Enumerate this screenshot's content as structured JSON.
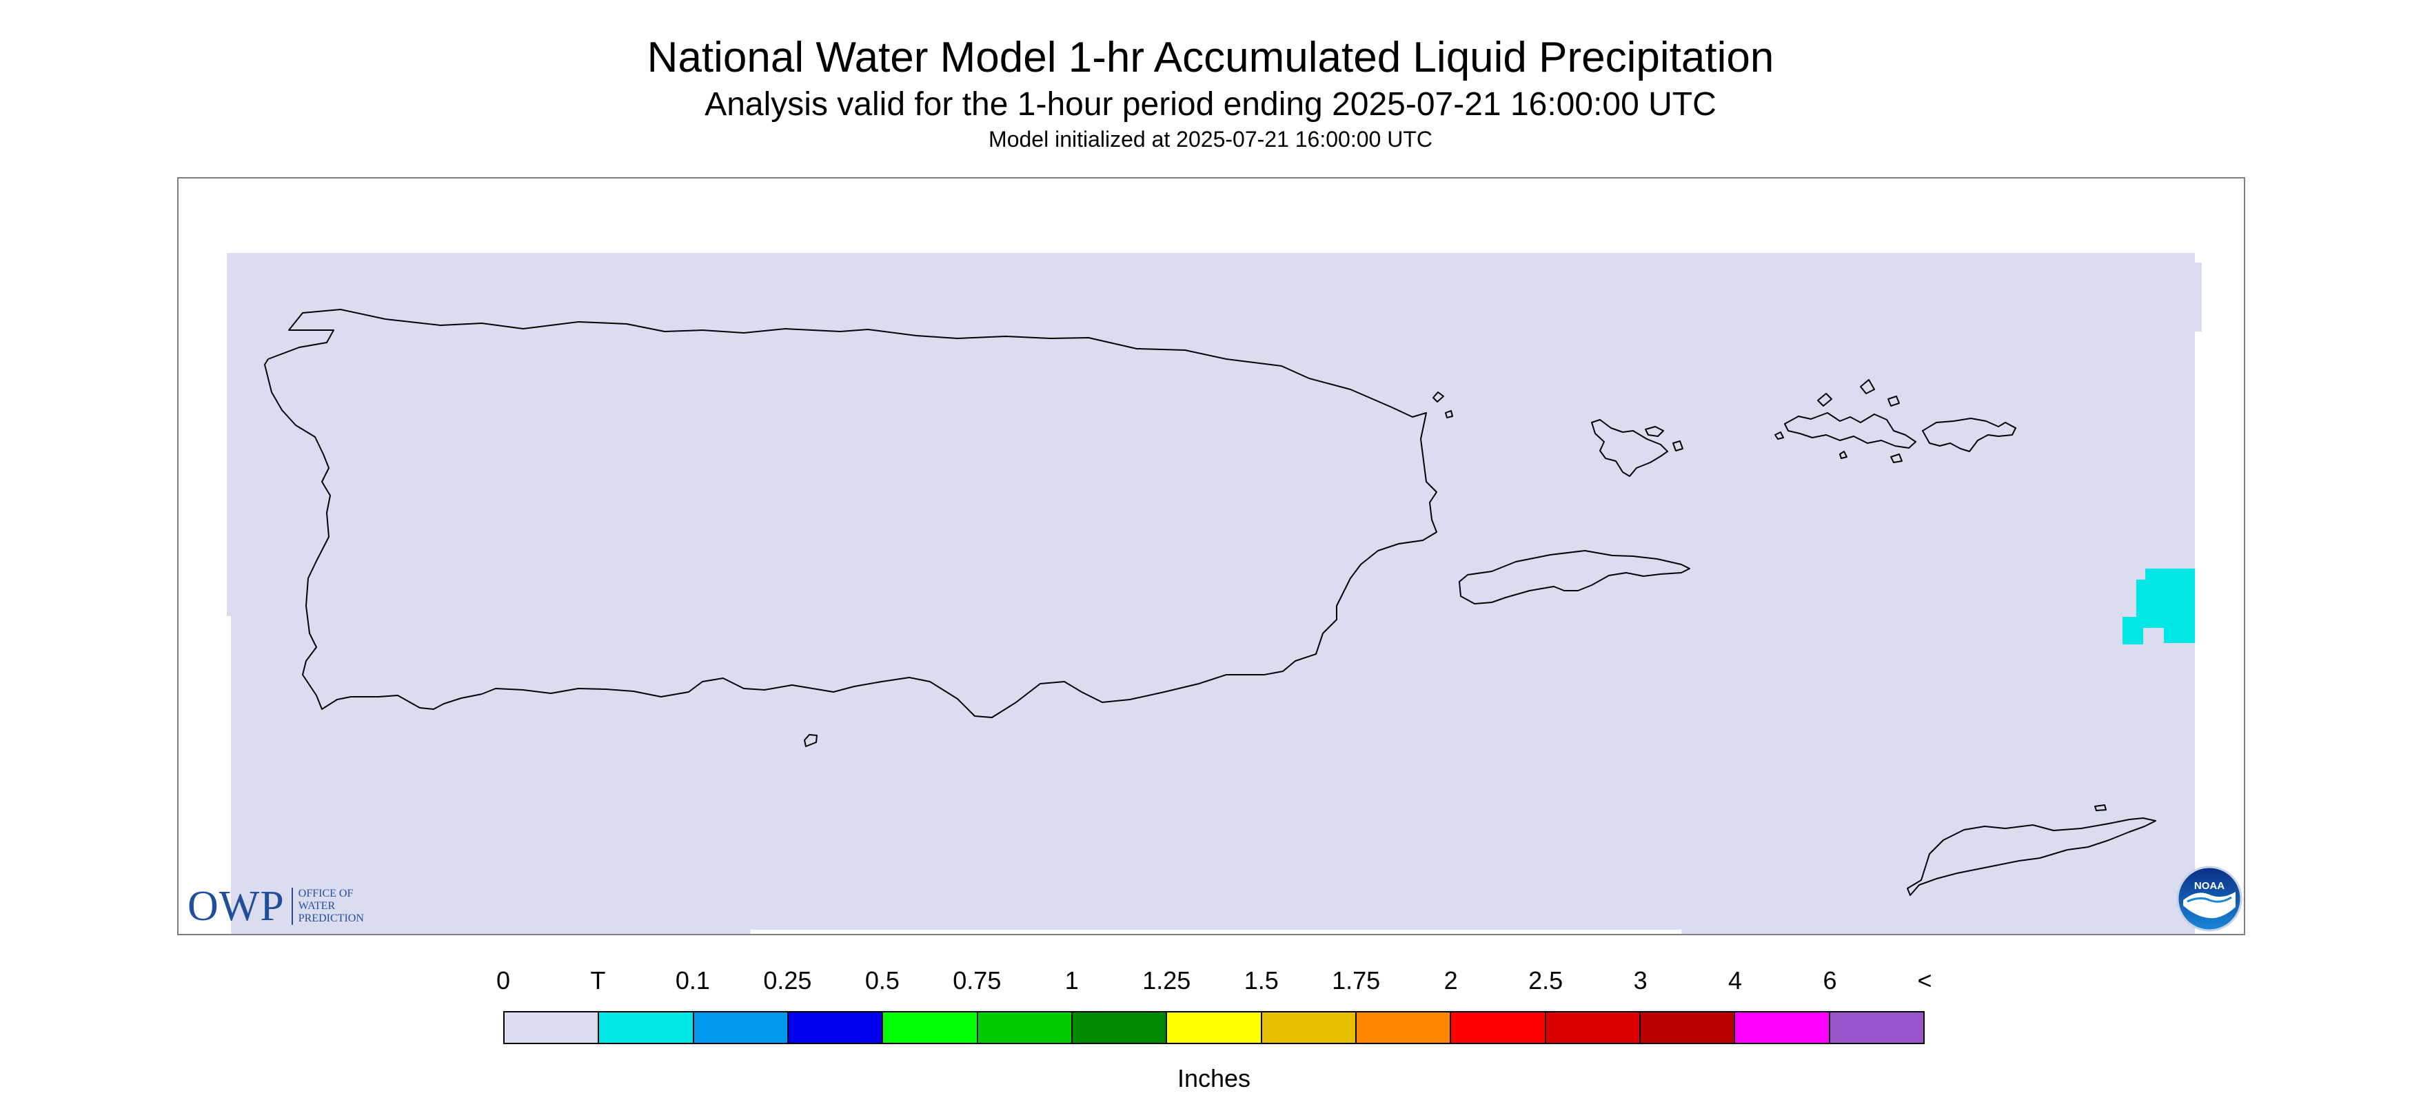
{
  "header": {
    "title": "National Water Model 1-hr Accumulated Liquid Precipitation",
    "subtitle": "Analysis valid for the 1-hour period ending 2025-07-21 16:00:00 UTC",
    "init": "Model initialized at 2025-07-21 16:00:00 UTC"
  },
  "map": {
    "background_color": "#dcdcf0",
    "outline_color": "#000000",
    "precip_cell_color": "#00e7e7",
    "logos": {
      "owp_mark": "OWP",
      "owp_words": [
        "OFFICE OF",
        "WATER",
        "PREDICTION"
      ],
      "noaa": "NOAA"
    }
  },
  "legend": {
    "labels": [
      "0",
      "T",
      "0.1",
      "0.25",
      "0.5",
      "0.75",
      "1",
      "1.25",
      "1.5",
      "1.75",
      "2",
      "2.5",
      "3",
      "4",
      "6",
      "<"
    ],
    "colors": [
      "#dcdcf0",
      "#00e7e7",
      "#0099ee",
      "#0000ee",
      "#00ff00",
      "#00cc00",
      "#008800",
      "#ffff00",
      "#e6c000",
      "#ff8800",
      "#ff0000",
      "#dd0000",
      "#bb0000",
      "#ff00ff",
      "#9955cc"
    ],
    "units": "Inches"
  }
}
